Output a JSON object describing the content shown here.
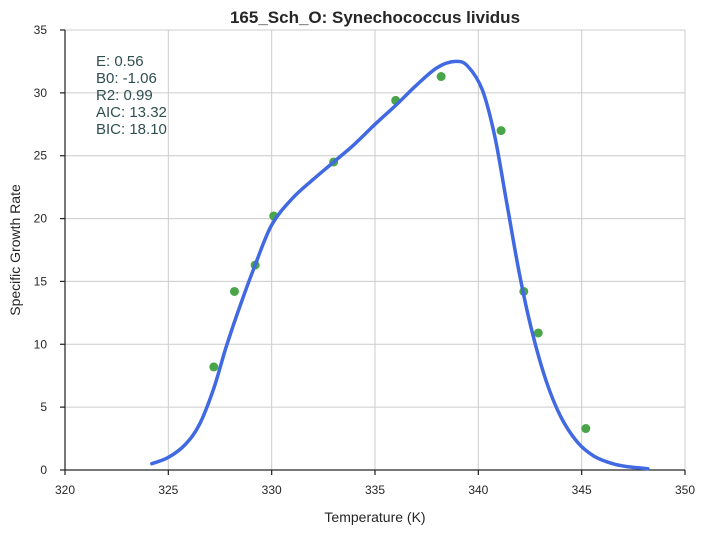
{
  "chart_data": {
    "type": "scatter",
    "title": "165_Sch_O: Synechococcus lividus",
    "xlabel": "Temperature (K)",
    "ylabel": "Specific Growth Rate",
    "xlim": [
      320,
      350
    ],
    "ylim": [
      0,
      35
    ],
    "xticks": [
      320,
      325,
      330,
      335,
      340,
      345,
      350
    ],
    "yticks": [
      0,
      5,
      10,
      15,
      20,
      25,
      30,
      35
    ],
    "grid": true,
    "colors": {
      "points": "#4aa54a",
      "fit": "#4169e1"
    },
    "points": [
      {
        "x": 327.2,
        "y": 8.2
      },
      {
        "x": 328.2,
        "y": 14.2
      },
      {
        "x": 329.2,
        "y": 16.3
      },
      {
        "x": 330.1,
        "y": 20.2
      },
      {
        "x": 333.0,
        "y": 24.5
      },
      {
        "x": 336.0,
        "y": 29.4
      },
      {
        "x": 338.2,
        "y": 31.3
      },
      {
        "x": 341.1,
        "y": 27.0
      },
      {
        "x": 342.2,
        "y": 14.2
      },
      {
        "x": 342.9,
        "y": 10.9
      },
      {
        "x": 345.2,
        "y": 3.3
      }
    ],
    "fit_curve": [
      {
        "x": 324.2,
        "y": 0.5
      },
      {
        "x": 325.0,
        "y": 1.0
      },
      {
        "x": 325.8,
        "y": 2.0
      },
      {
        "x": 326.5,
        "y": 3.6
      },
      {
        "x": 327.2,
        "y": 6.5
      },
      {
        "x": 327.8,
        "y": 9.8
      },
      {
        "x": 328.5,
        "y": 13.2
      },
      {
        "x": 329.2,
        "y": 16.3
      },
      {
        "x": 330.0,
        "y": 19.5
      },
      {
        "x": 331.0,
        "y": 21.6
      },
      {
        "x": 332.0,
        "y": 23.1
      },
      {
        "x": 333.0,
        "y": 24.5
      },
      {
        "x": 334.0,
        "y": 25.9
      },
      {
        "x": 335.0,
        "y": 27.5
      },
      {
        "x": 336.0,
        "y": 29.0
      },
      {
        "x": 337.0,
        "y": 30.6
      },
      {
        "x": 338.0,
        "y": 32.0
      },
      {
        "x": 338.9,
        "y": 32.5
      },
      {
        "x": 339.5,
        "y": 32.1
      },
      {
        "x": 340.2,
        "y": 30.2
      },
      {
        "x": 340.8,
        "y": 26.5
      },
      {
        "x": 341.4,
        "y": 21.0
      },
      {
        "x": 342.0,
        "y": 15.5
      },
      {
        "x": 342.6,
        "y": 11.0
      },
      {
        "x": 343.3,
        "y": 7.0
      },
      {
        "x": 344.0,
        "y": 4.2
      },
      {
        "x": 344.8,
        "y": 2.2
      },
      {
        "x": 345.6,
        "y": 1.1
      },
      {
        "x": 346.5,
        "y": 0.5
      },
      {
        "x": 347.3,
        "y": 0.25
      },
      {
        "x": 348.2,
        "y": 0.1
      }
    ],
    "annotations": [
      "E:  0.56",
      "B0:  -1.06",
      "R2:  0.99",
      "AIC: 13.32",
      "BIC: 18.10"
    ]
  }
}
